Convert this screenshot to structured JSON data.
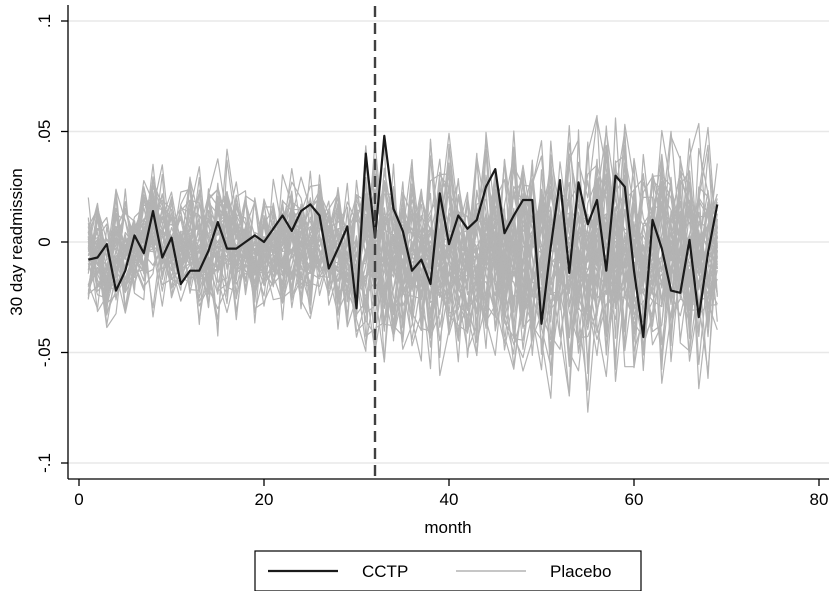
{
  "chart_data": {
    "type": "line",
    "title": "",
    "xlabel": "month",
    "ylabel": "30 day readmission",
    "xlim": [
      0,
      80
    ],
    "ylim": [
      -0.1,
      0.1
    ],
    "xticks": [
      0,
      20,
      40,
      60,
      80
    ],
    "xtick_labels": [
      "0",
      "20",
      "40",
      "60",
      "80"
    ],
    "yticks": [
      0.1,
      0.05,
      0,
      -0.05,
      -0.1
    ],
    "ytick_labels": [
      ".1",
      ".05",
      "0",
      "-.05",
      "-.1"
    ],
    "grid": "horizontal",
    "legend_position": "bottom",
    "reference_line": {
      "x": 32,
      "style": "dashed"
    },
    "colors": {
      "treated": "#1a1a1a",
      "placebo": "#b3b3b3",
      "grid": "#e8e8e8",
      "axis": "#000000"
    },
    "series": [
      {
        "name": "CCTP",
        "x": [
          1,
          2,
          3,
          4,
          5,
          6,
          7,
          8,
          9,
          10,
          11,
          12,
          13,
          14,
          15,
          16,
          17,
          18,
          19,
          20,
          21,
          22,
          23,
          24,
          25,
          26,
          27,
          28,
          29,
          30,
          31,
          32,
          33,
          34,
          35,
          36,
          37,
          38,
          39,
          40,
          41,
          42,
          43,
          44,
          45,
          46,
          47,
          48,
          49,
          50,
          51,
          52,
          53,
          54,
          55,
          56,
          57,
          58,
          59,
          60,
          61,
          62,
          63,
          64,
          65,
          66,
          67,
          68,
          69
        ],
        "values": [
          -0.008,
          -0.007,
          -0.001,
          -0.022,
          -0.013,
          0.003,
          -0.005,
          0.014,
          -0.007,
          0.002,
          -0.019,
          -0.013,
          -0.013,
          -0.004,
          0.009,
          -0.003,
          -0.003,
          -0.0,
          0.003,
          0.0,
          0.006,
          0.012,
          0.005,
          0.014,
          0.017,
          0.012,
          -0.012,
          -0.003,
          0.007,
          -0.03,
          0.04,
          0.002,
          0.048,
          0.015,
          0.005,
          -0.013,
          -0.008,
          -0.019,
          0.022,
          -0.001,
          0.012,
          0.006,
          0.01,
          0.025,
          0.033,
          0.004,
          0.012,
          0.019,
          0.019,
          -0.037,
          -0.002,
          0.028,
          -0.014,
          0.027,
          0.008,
          0.019,
          -0.013,
          0.03,
          0.025,
          -0.013,
          -0.043,
          0.01,
          -0.003,
          -0.022,
          -0.023,
          0.001,
          -0.034,
          -0.005,
          0.017
        ]
      },
      {
        "name": "Placebo",
        "x_range": [
          1,
          69
        ],
        "placebo_count": 50,
        "envelope_upper": [
          0.022,
          0.029,
          0.02,
          0.025,
          0.028,
          0.024,
          0.031,
          0.045,
          0.034,
          0.028,
          0.024,
          0.032,
          0.036,
          0.038,
          0.041,
          0.054,
          0.035,
          0.03,
          0.029,
          0.031,
          0.034,
          0.035,
          0.037,
          0.034,
          0.033,
          0.036,
          0.03,
          0.038,
          0.033,
          0.036,
          0.055,
          0.053,
          0.054,
          0.048,
          0.046,
          0.045,
          0.043,
          0.047,
          0.05,
          0.052,
          0.049,
          0.05,
          0.052,
          0.054,
          0.057,
          0.054,
          0.052,
          0.05,
          0.052,
          0.056,
          0.058,
          0.06,
          0.065,
          0.07,
          0.063,
          0.072,
          0.065,
          0.061,
          0.058,
          0.055,
          0.052,
          0.057,
          0.07,
          0.058,
          0.055,
          0.056,
          0.058,
          0.052,
          0.038
        ],
        "envelope_lower": [
          -0.031,
          -0.042,
          -0.048,
          -0.035,
          -0.038,
          -0.032,
          -0.036,
          -0.034,
          -0.03,
          -0.034,
          -0.033,
          -0.036,
          -0.045,
          -0.04,
          -0.044,
          -0.042,
          -0.038,
          -0.036,
          -0.039,
          -0.037,
          -0.039,
          -0.038,
          -0.041,
          -0.036,
          -0.039,
          -0.035,
          -0.036,
          -0.041,
          -0.045,
          -0.053,
          -0.065,
          -0.058,
          -0.062,
          -0.06,
          -0.056,
          -0.058,
          -0.062,
          -0.068,
          -0.061,
          -0.058,
          -0.061,
          -0.063,
          -0.062,
          -0.068,
          -0.065,
          -0.066,
          -0.075,
          -0.068,
          -0.066,
          -0.073,
          -0.076,
          -0.069,
          -0.072,
          -0.068,
          -0.071,
          -0.077,
          -0.071,
          -0.065,
          -0.063,
          -0.067,
          -0.066,
          -0.065,
          -0.07,
          -0.066,
          -0.068,
          -0.069,
          -0.071,
          -0.063,
          -0.046
        ]
      }
    ]
  }
}
